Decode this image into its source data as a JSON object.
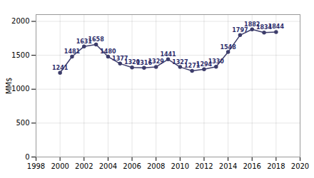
{
  "chart_data": {
    "type": "line",
    "x": [
      2000,
      2001,
      2002,
      2003,
      2004,
      2005,
      2006,
      2007,
      2008,
      2009,
      2010,
      2011,
      2012,
      2013,
      2014,
      2015,
      2016,
      2017,
      2018
    ],
    "values": [
      1241,
      1481,
      1631,
      1658,
      1480,
      1377,
      1320,
      1316,
      1329,
      1441,
      1327,
      1271,
      1294,
      1330,
      1548,
      1797,
      1882,
      1834,
      1844
    ],
    "xlim": [
      1998,
      2020
    ],
    "ylim": [
      0,
      2100
    ],
    "xticks": [
      1998,
      2000,
      2002,
      2004,
      2006,
      2008,
      2010,
      2012,
      2014,
      2016,
      2018,
      2020
    ],
    "yticks": [
      0,
      500,
      1000,
      1500,
      2000
    ],
    "ylabel": "MM$",
    "color": "#3d3d6b",
    "marker": "circle",
    "grid": true,
    "data_labels": true
  }
}
